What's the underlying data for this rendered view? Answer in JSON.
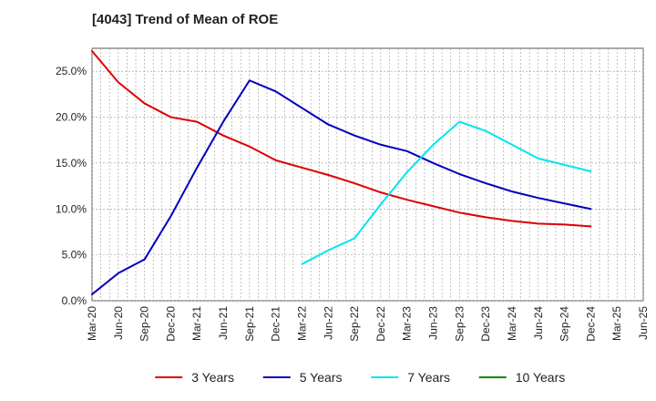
{
  "chart_data": {
    "type": "line",
    "title": "[4043]  Trend of Mean of ROE",
    "xlabel": "",
    "ylabel": "",
    "x": [
      "Mar-20",
      "Jun-20",
      "Sep-20",
      "Dec-20",
      "Mar-21",
      "Jun-21",
      "Sep-21",
      "Dec-21",
      "Mar-22",
      "Jun-22",
      "Sep-22",
      "Dec-22",
      "Mar-23",
      "Jun-23",
      "Sep-23",
      "Dec-23",
      "Mar-24",
      "Jun-24",
      "Sep-24",
      "Dec-24",
      "Mar-25",
      "Jun-25"
    ],
    "ylim": [
      0,
      0.275
    ],
    "yticks": [
      0,
      0.05,
      0.1,
      0.15,
      0.2,
      0.25
    ],
    "ytick_labels": [
      "0.0%",
      "5.0%",
      "10.0%",
      "15.0%",
      "20.0%",
      "25.0%"
    ],
    "grid": true,
    "legend_position": "bottom",
    "series": [
      {
        "name": "3 Years",
        "color": "#dd0000",
        "values": [
          0.272,
          0.238,
          0.215,
          0.2,
          0.195,
          0.18,
          0.168,
          0.153,
          0.145,
          0.137,
          0.128,
          0.118,
          0.11,
          0.103,
          0.096,
          0.091,
          0.087,
          0.084,
          0.083,
          0.081,
          null,
          null
        ]
      },
      {
        "name": "5 Years",
        "color": "#0000bb",
        "values": [
          0.007,
          0.03,
          0.045,
          0.092,
          0.145,
          0.195,
          0.24,
          0.228,
          0.21,
          0.192,
          0.18,
          0.17,
          0.163,
          0.15,
          0.138,
          0.128,
          0.119,
          0.112,
          0.106,
          0.1,
          null,
          null
        ]
      },
      {
        "name": "7 Years",
        "color": "#00e5ee",
        "values": [
          null,
          null,
          null,
          null,
          null,
          null,
          null,
          null,
          0.04,
          0.055,
          0.068,
          0.105,
          0.14,
          0.17,
          0.195,
          0.185,
          0.17,
          0.155,
          0.148,
          0.141,
          null,
          null
        ]
      },
      {
        "name": "10 Years",
        "color": "#008800",
        "values": [
          null,
          null,
          null,
          null,
          null,
          null,
          null,
          null,
          null,
          null,
          null,
          null,
          null,
          null,
          null,
          null,
          null,
          null,
          null,
          null,
          null,
          null
        ]
      }
    ]
  }
}
